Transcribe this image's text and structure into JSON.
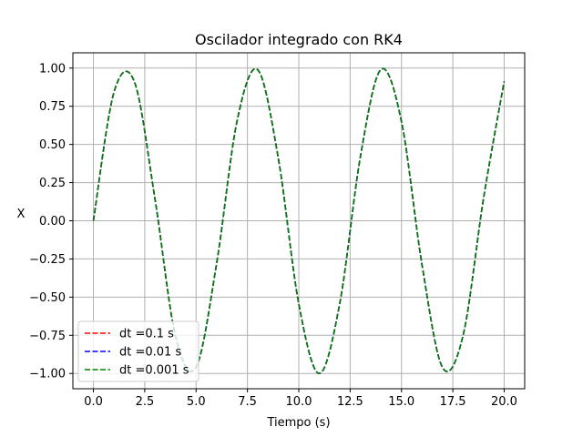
{
  "chart_data": {
    "type": "line",
    "title": "Oscilador integrado con RK4",
    "xlabel": "Tiempo (s)",
    "ylabel": "X",
    "xlim": [
      -1.0,
      21.0
    ],
    "ylim": [
      -1.1,
      1.1
    ],
    "xticks": [
      0.0,
      2.5,
      5.0,
      7.5,
      10.0,
      12.5,
      15.0,
      17.5,
      20.0
    ],
    "xtick_labels": [
      "0.0",
      "2.5",
      "5.0",
      "7.5",
      "10.0",
      "12.5",
      "15.0",
      "17.5",
      "20.0"
    ],
    "yticks": [
      -1.0,
      -0.75,
      -0.5,
      -0.25,
      0.0,
      0.25,
      0.5,
      0.75,
      1.0
    ],
    "ytick_labels": [
      "−1.00",
      "−0.75",
      "−0.50",
      "−0.25",
      "0.00",
      "0.25",
      "0.50",
      "0.75",
      "1.00"
    ],
    "grid": true,
    "legend_position": "lower-left",
    "function": "x = sin(t)",
    "x": [
      0.0,
      1.0,
      2.0,
      3.0,
      4.0,
      5.0,
      6.0,
      7.0,
      8.0,
      9.0,
      10.0,
      11.0,
      12.0,
      13.0,
      14.0,
      15.0,
      16.0,
      17.0,
      18.0,
      19.0,
      20.0
    ],
    "series": [
      {
        "name": "dt =0.1 s",
        "color": "#ff0000",
        "dash": "dashed",
        "values": [
          0.0,
          0.841,
          0.909,
          0.141,
          -0.757,
          -0.959,
          -0.279,
          0.657,
          0.989,
          0.412,
          -0.544,
          -1.0,
          -0.537,
          0.42,
          0.991,
          0.65,
          -0.288,
          -0.961,
          -0.751,
          0.15,
          0.913
        ]
      },
      {
        "name": "dt =0.01 s",
        "color": "#0000ff",
        "dash": "dashed",
        "values": [
          0.0,
          0.841,
          0.909,
          0.141,
          -0.757,
          -0.959,
          -0.279,
          0.657,
          0.989,
          0.412,
          -0.544,
          -1.0,
          -0.537,
          0.42,
          0.991,
          0.65,
          -0.288,
          -0.961,
          -0.751,
          0.15,
          0.913
        ]
      },
      {
        "name": "dt =0.001 s",
        "color": "#008000",
        "dash": "dashed",
        "values": [
          0.0,
          0.841,
          0.909,
          0.141,
          -0.757,
          -0.959,
          -0.279,
          0.657,
          0.989,
          0.412,
          -0.544,
          -1.0,
          -0.537,
          0.42,
          0.991,
          0.65,
          -0.288,
          -0.961,
          -0.751,
          0.15,
          0.913
        ]
      }
    ]
  }
}
